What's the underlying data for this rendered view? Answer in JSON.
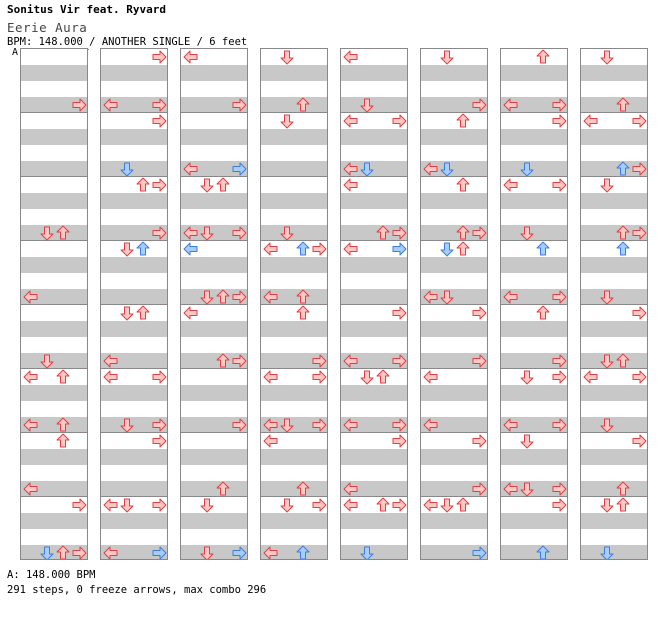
{
  "header": {
    "title": "Sonitus Vir feat. Ryvard",
    "subtitle": "Eerie Aura",
    "info": "BPM: 148.000 / ANOTHER SINGLE / 6 feet",
    "bpm_marker": "A"
  },
  "footer": {
    "bpm": "A: 148.000 BPM",
    "stats": "291 steps, 0 freeze arrows, max combo 296"
  },
  "colors": {
    "red_fill": "#ffc8c8",
    "red_stroke": "#e04040",
    "blue_fill": "#a8cdf8",
    "blue_stroke": "#3a7ee0",
    "stripe": "#c8c8c8",
    "divider": "#888888"
  },
  "chart": {
    "columns": 8,
    "measures_per_column": 4,
    "rows_per_measure": 4,
    "lanes": [
      "left",
      "down",
      "up",
      "right"
    ],
    "notes": [
      [
        [
          1,
          0,
          0,
          3
        ],
        [
          5,
          0,
          3,
          2
        ],
        [
          7,
          0,
          0,
          0
        ],
        [
          9,
          0,
          0,
          1
        ],
        [
          10,
          2,
          3,
          0
        ],
        [
          11,
          0,
          2,
          0
        ],
        [
          12,
          0,
          1,
          2
        ],
        [
          13,
          0,
          0,
          0
        ],
        [
          14,
          1,
          0,
          3
        ],
        [
          15,
          3,
          1,
          3
        ]
      ],
      [
        [
          0,
          0,
          0,
          3
        ],
        [
          1,
          0,
          1,
          0
        ],
        [
          2,
          0,
          0,
          3
        ],
        [
          3,
          0,
          0,
          1
        ],
        [
          4,
          3,
          1,
          2
        ],
        [
          5,
          0,
          0,
          3
        ],
        [
          6,
          0,
          3,
          1
        ],
        [
          8,
          1,
          0,
          2
        ],
        [
          9,
          0,
          2,
          0
        ],
        [
          10,
          1,
          0,
          0
        ],
        [
          11,
          2,
          3,
          3
        ],
        [
          12,
          0,
          0,
          3
        ],
        [
          14,
          3,
          1,
          3
        ],
        [
          15,
          1,
          3,
          0
        ]
      ],
      [
        [
          0,
          0,
          3,
          0
        ],
        [
          1,
          0,
          0,
          3
        ],
        [
          3,
          0,
          3,
          0
        ],
        [
          4,
          1,
          0,
          2
        ],
        [
          5,
          2,
          3,
          0
        ],
        [
          6,
          2,
          0,
          0
        ],
        [
          7,
          2,
          3,
          2
        ],
        [
          8,
          0,
          3,
          0
        ],
        [
          9,
          1,
          0,
          3
        ],
        [
          11,
          0,
          0,
          3
        ],
        [
          13,
          0,
          0,
          2
        ],
        [
          14,
          0,
          2,
          1
        ],
        [
          15,
          0,
          3,
          1
        ]
      ],
      [
        [
          0,
          0,
          0,
          1
        ],
        [
          1,
          0,
          0,
          2
        ],
        [
          2,
          0,
          0,
          1
        ],
        [
          5,
          0,
          3,
          1
        ],
        [
          6,
          2,
          3,
          3
        ],
        [
          7,
          3,
          0,
          0
        ],
        [
          8,
          0,
          0,
          2
        ],
        [
          9,
          0,
          0,
          3
        ],
        [
          10,
          1,
          1,
          0
        ],
        [
          11,
          2,
          3,
          0
        ],
        [
          12,
          0,
          0,
          0
        ],
        [
          13,
          0,
          0,
          2
        ],
        [
          14,
          0,
          2,
          3
        ],
        [
          15,
          3,
          0,
          0
        ]
      ],
      [
        [
          0,
          0,
          0,
          0
        ],
        [
          1,
          0,
          0,
          1
        ],
        [
          2,
          1,
          0,
          0
        ],
        [
          3,
          0,
          1,
          0
        ],
        [
          4,
          0,
          3,
          0
        ],
        [
          5,
          0,
          1,
          2
        ],
        [
          6,
          1,
          0,
          0
        ],
        [
          8,
          3,
          0,
          3
        ],
        [
          9,
          2,
          0,
          0
        ],
        [
          10,
          3,
          0,
          2
        ],
        [
          11,
          0,
          3,
          0
        ],
        [
          12,
          0,
          0,
          3
        ],
        [
          13,
          3,
          2,
          0
        ],
        [
          14,
          1,
          3,
          0
        ],
        [
          15,
          0,
          0,
          1
        ]
      ],
      [
        [
          0,
          0,
          0,
          1
        ],
        [
          1,
          0,
          0,
          3
        ],
        [
          2,
          0,
          0,
          2
        ],
        [
          3,
          2,
          0,
          0
        ],
        [
          4,
          0,
          1,
          2
        ],
        [
          5,
          1,
          0,
          3
        ],
        [
          6,
          3,
          0,
          2
        ],
        [
          7,
          1,
          0,
          1
        ],
        [
          8,
          3,
          0,
          3
        ],
        [
          9,
          0,
          0,
          3
        ],
        [
          10,
          0,
          1,
          0
        ],
        [
          11,
          0,
          0,
          0
        ],
        [
          12,
          0,
          0,
          3
        ],
        [
          13,
          0,
          0,
          3
        ],
        [
          14,
          2,
          3,
          1
        ],
        [
          15,
          0,
          0,
          3
        ]
      ],
      [
        [
          0,
          0,
          0,
          2
        ],
        [
          1,
          0,
          1,
          0
        ],
        [
          2,
          0,
          0,
          3
        ],
        [
          3,
          0,
          0,
          1
        ],
        [
          4,
          3,
          3,
          3
        ],
        [
          5,
          0,
          0,
          1
        ],
        [
          6,
          0,
          0,
          2
        ],
        [
          7,
          1,
          0,
          3
        ],
        [
          8,
          2,
          0,
          2
        ],
        [
          9,
          0,
          0,
          3
        ],
        [
          10,
          3,
          0,
          3
        ],
        [
          11,
          0,
          3,
          0
        ],
        [
          12,
          0,
          0,
          1
        ],
        [
          13,
          3,
          1,
          1
        ],
        [
          14,
          0,
          0,
          3
        ],
        [
          15,
          3,
          0,
          2
        ]
      ],
      [
        [
          0,
          0,
          0,
          1
        ],
        [
          1,
          0,
          0,
          2
        ],
        [
          2,
          1,
          0,
          0
        ],
        [
          3,
          0,
          2,
          3
        ],
        [
          4,
          0,
          0,
          1
        ],
        [
          5,
          1,
          0,
          3
        ],
        [
          6,
          0,
          0,
          2
        ],
        [
          7,
          0,
          0,
          1
        ],
        [
          8,
          0,
          0,
          3
        ],
        [
          9,
          1,
          0,
          1
        ],
        [
          10,
          1,
          0,
          0
        ],
        [
          11,
          2,
          0,
          1
        ],
        [
          12,
          0,
          0,
          3
        ],
        [
          13,
          0,
          0,
          2
        ],
        [
          14,
          0,
          3,
          1
        ],
        [
          15,
          0,
          0,
          1
        ]
      ]
    ]
  }
}
